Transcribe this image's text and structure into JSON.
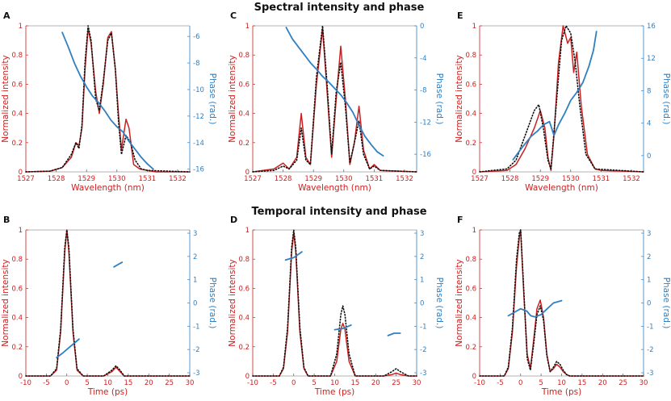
{
  "titles": {
    "spectral": "Spectral intensity and phase",
    "temporal": "Temporal intensity and phase"
  },
  "colors": {
    "intensity": "#cc1f1f",
    "phase": "#2f7fc1",
    "reference": "#111111"
  },
  "chart_data": [
    {
      "panel": "A",
      "type": "line",
      "xlabel": "Wavelength (nm)",
      "ylabel": "Normalized intensity",
      "y2label": "Phase (rad.)",
      "xlim": [
        1527,
        1532.4
      ],
      "xticks": [
        1527,
        1528,
        1529,
        1530,
        1531,
        1532
      ],
      "ylim": [
        0,
        1
      ],
      "yticks": [
        0,
        0.2,
        0.4,
        0.6,
        0.8,
        1
      ],
      "y2lim": [
        -16.2,
        -5.2
      ],
      "y2ticks": [
        -16,
        -14,
        -12,
        -10,
        -8,
        -6
      ],
      "series": [
        {
          "role": "intensity",
          "style": "solid",
          "x": [
            1527,
            1527.8,
            1528.2,
            1528.5,
            1528.65,
            1528.75,
            1528.85,
            1528.95,
            1529.05,
            1529.15,
            1529.3,
            1529.42,
            1529.55,
            1529.7,
            1529.82,
            1529.95,
            1530.05,
            1530.15,
            1530.22,
            1530.3,
            1530.4,
            1530.55,
            1530.75,
            1531,
            1531.3,
            1532.4
          ],
          "y": [
            0,
            0.005,
            0.03,
            0.1,
            0.2,
            0.18,
            0.3,
            0.7,
            0.98,
            0.88,
            0.55,
            0.4,
            0.6,
            0.92,
            0.96,
            0.7,
            0.4,
            0.15,
            0.25,
            0.36,
            0.3,
            0.05,
            0.02,
            0.01,
            0,
            0
          ]
        },
        {
          "role": "reference",
          "style": "dotted",
          "x": [
            1527,
            1527.8,
            1528.2,
            1528.5,
            1528.65,
            1528.75,
            1528.85,
            1528.95,
            1529.05,
            1529.15,
            1529.3,
            1529.42,
            1529.55,
            1529.7,
            1529.82,
            1529.95,
            1530.05,
            1530.15,
            1530.3,
            1530.45,
            1530.6,
            1530.8,
            1531,
            1532.4
          ],
          "y": [
            0,
            0.005,
            0.03,
            0.12,
            0.2,
            0.16,
            0.32,
            0.75,
            1.0,
            0.9,
            0.5,
            0.42,
            0.62,
            0.9,
            0.95,
            0.7,
            0.35,
            0.12,
            0.25,
            0.2,
            0.08,
            0.02,
            0.01,
            0
          ]
        },
        {
          "role": "phase",
          "style": "solid",
          "axis": "y2",
          "x": [
            1528.2,
            1528.4,
            1528.6,
            1528.8,
            1529,
            1529.2,
            1529.4,
            1529.6,
            1529.8,
            1530,
            1530.2,
            1530.4,
            1530.6,
            1530.8,
            1531,
            1531.2
          ],
          "y": [
            -5.7,
            -6.8,
            -8.0,
            -9.0,
            -9.8,
            -10.5,
            -11.0,
            -11.6,
            -12.3,
            -12.8,
            -13.2,
            -13.9,
            -14.5,
            -15.1,
            -15.6,
            -16.0
          ]
        }
      ]
    },
    {
      "panel": "C",
      "type": "line",
      "xlabel": "Wavelength (nm)",
      "ylabel": "Normalized intensity",
      "y2label": "Phase (rad.)",
      "xlim": [
        1527,
        1532.4
      ],
      "xticks": [
        1527,
        1528,
        1529,
        1530,
        1531,
        1532
      ],
      "ylim": [
        0,
        1
      ],
      "yticks": [
        0,
        0.2,
        0.4,
        0.6,
        0.8,
        1
      ],
      "y2lim": [
        -18.2,
        0
      ],
      "y2ticks": [
        -16,
        -12,
        -8,
        -4,
        0
      ],
      "series": [
        {
          "role": "intensity",
          "style": "solid",
          "x": [
            1527,
            1527.7,
            1528,
            1528.2,
            1528.45,
            1528.6,
            1528.75,
            1528.9,
            1529.1,
            1529.3,
            1529.45,
            1529.6,
            1529.75,
            1529.9,
            1530.05,
            1530.2,
            1530.35,
            1530.5,
            1530.65,
            1530.85,
            1531,
            1531.2,
            1532.4
          ],
          "y": [
            0,
            0.02,
            0.06,
            0.02,
            0.1,
            0.4,
            0.1,
            0.05,
            0.6,
            0.98,
            0.55,
            0.1,
            0.5,
            0.86,
            0.5,
            0.05,
            0.2,
            0.45,
            0.15,
            0.02,
            0.05,
            0.01,
            0
          ]
        },
        {
          "role": "reference",
          "style": "dotted",
          "x": [
            1527,
            1527.7,
            1528,
            1528.2,
            1528.45,
            1528.6,
            1528.75,
            1528.9,
            1529.1,
            1529.3,
            1529.45,
            1529.6,
            1529.75,
            1529.9,
            1530.05,
            1530.2,
            1530.35,
            1530.5,
            1530.65,
            1530.85,
            1531,
            1531.2,
            1532.4
          ],
          "y": [
            0,
            0.01,
            0.04,
            0.02,
            0.08,
            0.3,
            0.08,
            0.05,
            0.65,
            1.0,
            0.6,
            0.12,
            0.55,
            0.75,
            0.45,
            0.06,
            0.2,
            0.35,
            0.12,
            0.02,
            0.04,
            0.01,
            0
          ]
        },
        {
          "role": "phase",
          "style": "solid",
          "axis": "y2",
          "x": [
            1528.1,
            1528.3,
            1528.5,
            1528.7,
            1528.9,
            1529.1,
            1529.3,
            1529.5,
            1529.7,
            1529.9,
            1530.1,
            1530.3,
            1530.5,
            1530.7,
            1530.9,
            1531.1,
            1531.3
          ],
          "y": [
            -0.2,
            -1.6,
            -2.6,
            -3.6,
            -4.6,
            -5.4,
            -6.3,
            -7.0,
            -7.8,
            -8.6,
            -9.6,
            -10.8,
            -12.4,
            -13.8,
            -14.8,
            -15.7,
            -16.2
          ]
        }
      ]
    },
    {
      "panel": "E",
      "type": "line",
      "xlabel": "Wavelength (nm)",
      "ylabel": "Normalized intensity",
      "y2label": "Phase (rad.)",
      "xlim": [
        1527,
        1532.4
      ],
      "xticks": [
        1527,
        1528,
        1529,
        1530,
        1531,
        1532
      ],
      "ylim": [
        0,
        1
      ],
      "yticks": [
        0,
        0.2,
        0.4,
        0.6,
        0.8,
        1
      ],
      "y2lim": [
        -2,
        16
      ],
      "y2ticks": [
        0,
        4,
        8,
        12,
        16
      ],
      "series": [
        {
          "role": "intensity",
          "style": "solid",
          "x": [
            1527,
            1527.9,
            1528.2,
            1528.5,
            1528.8,
            1529.0,
            1529.15,
            1529.25,
            1529.35,
            1529.45,
            1529.6,
            1529.75,
            1529.9,
            1530.0,
            1530.1,
            1530.2,
            1530.35,
            1530.55,
            1530.8,
            1531.0,
            1532.4
          ],
          "y": [
            0,
            0.01,
            0.05,
            0.16,
            0.3,
            0.42,
            0.3,
            0.1,
            0.01,
            0.25,
            0.75,
            1.0,
            0.88,
            0.92,
            0.68,
            0.82,
            0.45,
            0.12,
            0.02,
            0.01,
            0
          ]
        },
        {
          "role": "reference",
          "style": "dotted",
          "x": [
            1527,
            1527.9,
            1528.2,
            1528.5,
            1528.8,
            1528.95,
            1529.1,
            1529.25,
            1529.35,
            1529.5,
            1529.7,
            1529.85,
            1530.0,
            1530.15,
            1530.3,
            1530.5,
            1530.8,
            1532.4
          ],
          "y": [
            0,
            0.02,
            0.08,
            0.25,
            0.42,
            0.46,
            0.3,
            0.08,
            0.02,
            0.4,
            0.9,
            1.0,
            0.95,
            0.75,
            0.45,
            0.12,
            0.02,
            0
          ]
        },
        {
          "role": "phase",
          "style": "solid",
          "axis": "y2",
          "x": [
            1528.1,
            1528.4,
            1528.7,
            1528.9,
            1529.1,
            1529.3,
            1529.45,
            1529.6,
            1529.8,
            1530.0,
            1530.2,
            1530.4,
            1530.6,
            1530.75,
            1530.85
          ],
          "y": [
            -0.5,
            1.0,
            2.4,
            3.0,
            3.8,
            4.2,
            2.5,
            3.8,
            5.2,
            6.8,
            7.8,
            9.0,
            11.0,
            13.0,
            15.3
          ]
        }
      ]
    },
    {
      "panel": "B",
      "type": "line",
      "xlabel": "Time (ps)",
      "ylabel": "Normalized intensity",
      "y2label": "Phase (rad.)",
      "xlim": [
        -10,
        30
      ],
      "xticks": [
        -10,
        -5,
        0,
        5,
        10,
        15,
        20,
        25,
        30
      ],
      "ylim": [
        0,
        1
      ],
      "yticks": [
        0,
        0.2,
        0.4,
        0.6,
        0.8,
        1
      ],
      "y2lim": [
        -3.14,
        3.14
      ],
      "y2ticks": [
        -3,
        -2,
        -1,
        0,
        1,
        2,
        3
      ],
      "series": [
        {
          "role": "intensity",
          "style": "solid",
          "x": [
            -10,
            -4,
            -2.5,
            -1.5,
            -0.5,
            0,
            0.5,
            1.5,
            2.5,
            4,
            9,
            11,
            12,
            13,
            14,
            30
          ],
          "y": [
            0,
            0,
            0.04,
            0.3,
            0.85,
            1.0,
            0.85,
            0.3,
            0.04,
            0,
            0,
            0.03,
            0.06,
            0.03,
            0,
            0
          ]
        },
        {
          "role": "reference",
          "style": "dotted",
          "x": [
            -10,
            -4,
            -2.5,
            -1.5,
            -0.5,
            0,
            0.5,
            1.5,
            2.5,
            4,
            9,
            11,
            12,
            13,
            14,
            30
          ],
          "y": [
            0,
            0,
            0.05,
            0.32,
            0.88,
            1.0,
            0.88,
            0.32,
            0.05,
            0,
            0,
            0.04,
            0.07,
            0.04,
            0,
            0
          ]
        },
        {
          "role": "phase",
          "style": "solid",
          "axis": "y2",
          "x": [
            -2.5,
            -1,
            0,
            1,
            2,
            3
          ],
          "y": [
            -2.35,
            -2.15,
            -2.0,
            -1.85,
            -1.7,
            -1.55
          ]
        },
        {
          "role": "phase",
          "style": "solid",
          "axis": "y2",
          "x": [
            11.5,
            12.5,
            13.5
          ],
          "y": [
            1.55,
            1.65,
            1.75
          ]
        }
      ]
    },
    {
      "panel": "D",
      "type": "line",
      "xlabel": "Time (ps)",
      "ylabel": "Normalized intensity",
      "y2label": "Phase (rad.)",
      "xlim": [
        -10,
        30
      ],
      "xticks": [
        -10,
        -5,
        0,
        5,
        10,
        15,
        20,
        25,
        30
      ],
      "ylim": [
        0,
        1
      ],
      "yticks": [
        0,
        0.2,
        0.4,
        0.6,
        0.8,
        1
      ],
      "y2lim": [
        -3.14,
        3.14
      ],
      "y2ticks": [
        -3,
        -2,
        -1,
        0,
        1,
        2,
        3
      ],
      "series": [
        {
          "role": "intensity",
          "style": "solid",
          "x": [
            -10,
            -3.5,
            -2.5,
            -1.5,
            -0.5,
            0,
            0.5,
            1.5,
            2.5,
            3.5,
            9,
            10.5,
            11.5,
            12,
            12.5,
            13.5,
            15,
            22,
            24,
            25,
            26,
            28,
            30
          ],
          "y": [
            0,
            0,
            0.05,
            0.3,
            0.85,
            0.98,
            0.85,
            0.3,
            0.05,
            0,
            0,
            0.1,
            0.32,
            0.36,
            0.32,
            0.1,
            0,
            0,
            0.01,
            0.02,
            0.01,
            0,
            0
          ]
        },
        {
          "role": "reference",
          "style": "dotted",
          "x": [
            -10,
            -3.5,
            -2.5,
            -1.5,
            -0.5,
            0,
            0.5,
            1.5,
            2.5,
            3.5,
            9,
            10.5,
            11.5,
            12,
            12.5,
            13.5,
            15,
            22,
            24,
            25,
            26,
            28,
            30
          ],
          "y": [
            0,
            0,
            0.06,
            0.33,
            0.88,
            1.0,
            0.88,
            0.33,
            0.06,
            0,
            0,
            0.15,
            0.42,
            0.48,
            0.42,
            0.15,
            0,
            0,
            0.03,
            0.05,
            0.03,
            0,
            0
          ]
        },
        {
          "role": "phase",
          "style": "solid",
          "axis": "y2",
          "x": [
            -2,
            0,
            2
          ],
          "y": [
            1.85,
            1.95,
            2.2
          ]
        },
        {
          "role": "phase",
          "style": "solid",
          "axis": "y2",
          "x": [
            10,
            12,
            14
          ],
          "y": [
            -1.15,
            -1.1,
            -0.95
          ]
        },
        {
          "role": "phase",
          "style": "solid",
          "axis": "y2",
          "x": [
            23,
            24.5,
            26
          ],
          "y": [
            -1.4,
            -1.3,
            -1.3
          ]
        }
      ]
    },
    {
      "panel": "F",
      "type": "line",
      "xlabel": "Time (ps)",
      "ylabel": "Normalized intensity",
      "y2label": "Phase (rad.)",
      "xlim": [
        -10,
        30
      ],
      "xticks": [
        -10,
        -5,
        0,
        5,
        10,
        15,
        20,
        25,
        30
      ],
      "ylim": [
        0,
        1
      ],
      "yticks": [
        0,
        0.2,
        0.4,
        0.6,
        0.8,
        1
      ],
      "y2lim": [
        -3.14,
        3.14
      ],
      "y2ticks": [
        -3,
        -2,
        -1,
        0,
        1,
        2,
        3
      ],
      "series": [
        {
          "role": "intensity",
          "style": "solid",
          "x": [
            -10,
            -4,
            -3,
            -2,
            -1,
            -0.3,
            0,
            0.8,
            1.6,
            2.4,
            3.2,
            4.0,
            4.8,
            5.6,
            6.4,
            7.2,
            8.0,
            8.8,
            9.6,
            10.4,
            11.2,
            12,
            30
          ],
          "y": [
            0,
            0,
            0.05,
            0.3,
            0.75,
            0.95,
            1.0,
            0.55,
            0.15,
            0.05,
            0.25,
            0.46,
            0.52,
            0.4,
            0.15,
            0.03,
            0.05,
            0.08,
            0.06,
            0.03,
            0.01,
            0,
            0
          ]
        },
        {
          "role": "reference",
          "style": "dotted",
          "x": [
            -10,
            -4,
            -3,
            -2,
            -1,
            -0.3,
            0,
            0.8,
            1.6,
            2.4,
            3.2,
            4.0,
            4.8,
            5.6,
            6.4,
            7.2,
            8.0,
            8.8,
            9.6,
            10.4,
            11.2,
            12,
            30
          ],
          "y": [
            0,
            0,
            0.06,
            0.33,
            0.8,
            0.98,
            1.0,
            0.58,
            0.12,
            0.04,
            0.22,
            0.42,
            0.48,
            0.38,
            0.14,
            0.03,
            0.06,
            0.1,
            0.08,
            0.04,
            0.01,
            0,
            0
          ]
        },
        {
          "role": "phase",
          "style": "solid",
          "axis": "y2",
          "x": [
            -3,
            -1.5,
            0,
            1.5,
            2.5,
            3.5,
            5,
            6.5,
            8,
            10
          ],
          "y": [
            -0.55,
            -0.4,
            -0.25,
            -0.35,
            -0.55,
            -0.6,
            -0.5,
            -0.25,
            0.0,
            0.1
          ]
        }
      ]
    }
  ]
}
